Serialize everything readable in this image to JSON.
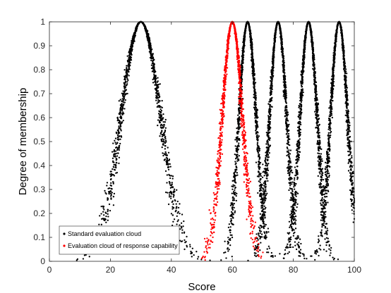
{
  "chart_data": {
    "type": "scatter",
    "title": "",
    "xlabel": "Score",
    "ylabel": "Degree of membership",
    "xlim": [
      0,
      100
    ],
    "ylim": [
      0,
      1
    ],
    "xticks": [
      "0",
      "20",
      "40",
      "60",
      "80",
      "100"
    ],
    "yticks": [
      "0",
      "0.1",
      "0.2",
      "0.3",
      "0.4",
      "0.5",
      "0.6",
      "0.7",
      "0.8",
      "0.9",
      "1"
    ],
    "grid": false,
    "legend_position": "bottom-left",
    "series": [
      {
        "name": "Standard evaluation cloud",
        "color": "#000000",
        "marker": "dot",
        "clouds": [
          {
            "Ex": 30,
            "En": 6.5,
            "He": 0.5
          },
          {
            "Ex": 65,
            "En": 2.8,
            "He": 0.25
          },
          {
            "Ex": 75,
            "En": 2.8,
            "He": 0.25
          },
          {
            "Ex": 85,
            "En": 2.8,
            "He": 0.25
          },
          {
            "Ex": 95,
            "En": 2.8,
            "He": 0.25
          }
        ]
      },
      {
        "name": "Evaluation cloud of response capability",
        "color": "#ff0000",
        "marker": "dot",
        "clouds": [
          {
            "Ex": 60,
            "En": 3.3,
            "He": 0.3
          }
        ]
      }
    ]
  }
}
